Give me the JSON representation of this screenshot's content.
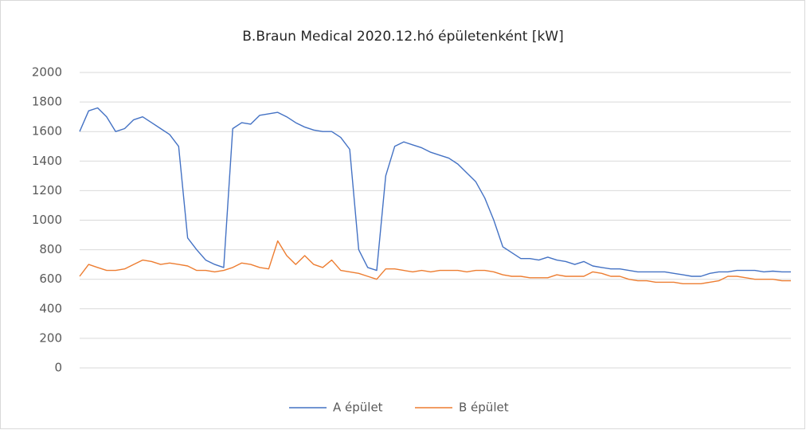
{
  "chart_data": {
    "type": "line",
    "title": "B.Braun Medical 2020.12.hó épületenként [kW]",
    "ylim": [
      0,
      2000
    ],
    "yticks": [
      0,
      200,
      400,
      600,
      800,
      1000,
      1200,
      1400,
      1600,
      1800,
      2000
    ],
    "grid": true,
    "legend": "bottom",
    "series": [
      {
        "name": "A épület",
        "color": "#4472c4",
        "values": [
          1600,
          1740,
          1760,
          1700,
          1600,
          1620,
          1680,
          1700,
          1660,
          1620,
          1580,
          1500,
          880,
          800,
          730,
          700,
          680,
          1620,
          1660,
          1650,
          1710,
          1720,
          1730,
          1700,
          1660,
          1630,
          1610,
          1600,
          1600,
          1560,
          1480,
          800,
          680,
          660,
          1300,
          1500,
          1530,
          1510,
          1490,
          1460,
          1440,
          1420,
          1380,
          1320,
          1260,
          1150,
          1000,
          820,
          780,
          740,
          740,
          730,
          750,
          730,
          720,
          700,
          720,
          690,
          680,
          670,
          670,
          660,
          650,
          650,
          650,
          650,
          640,
          630,
          620,
          620,
          640,
          650,
          650,
          660,
          660,
          660,
          650,
          655,
          650,
          650
        ]
      },
      {
        "name": "B épület",
        "color": "#ed7d31",
        "values": [
          620,
          700,
          680,
          660,
          660,
          670,
          700,
          730,
          720,
          700,
          710,
          700,
          690,
          660,
          660,
          650,
          660,
          680,
          710,
          700,
          680,
          670,
          860,
          760,
          700,
          760,
          700,
          680,
          730,
          660,
          650,
          640,
          620,
          600,
          670,
          670,
          660,
          650,
          660,
          650,
          660,
          660,
          660,
          650,
          660,
          660,
          650,
          630,
          620,
          620,
          610,
          610,
          610,
          630,
          620,
          620,
          620,
          650,
          640,
          620,
          620,
          600,
          590,
          590,
          580,
          580,
          580,
          570,
          570,
          570,
          580,
          590,
          620,
          620,
          610,
          600,
          600,
          600,
          590,
          590
        ]
      }
    ]
  }
}
